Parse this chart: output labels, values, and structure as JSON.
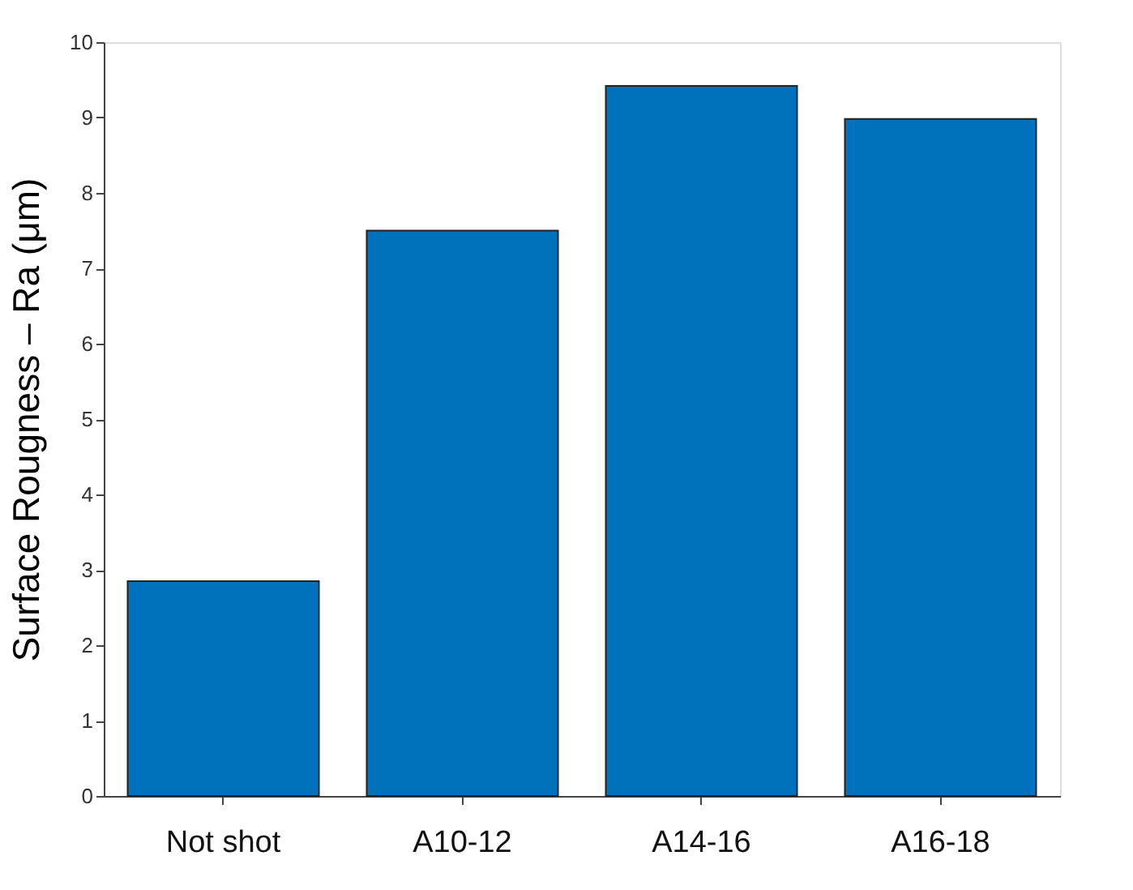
{
  "chart_data": {
    "type": "bar",
    "ylabel": "Surface Rougness – Ra (μm)",
    "categories": [
      "Not shot",
      "A10-12",
      "A14-16",
      "A16-18"
    ],
    "values": [
      2.85,
      7.5,
      9.42,
      8.98
    ],
    "color": "#0072bd",
    "ylim": [
      0,
      10
    ],
    "yticks": [
      0,
      1,
      2,
      3,
      4,
      5,
      6,
      7,
      8,
      9,
      10
    ],
    "grid": false
  }
}
